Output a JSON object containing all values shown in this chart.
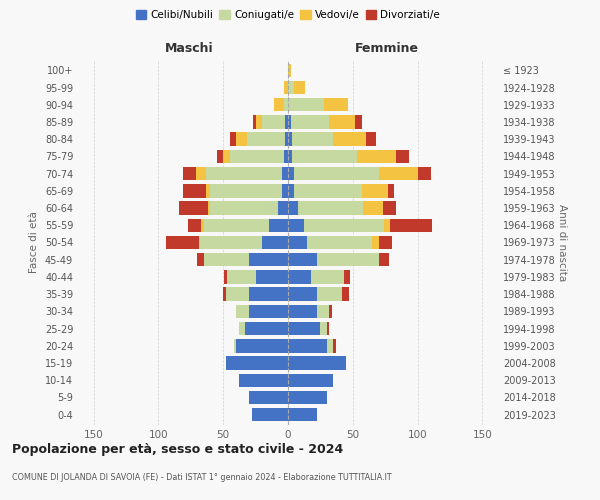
{
  "age_groups": [
    "0-4",
    "5-9",
    "10-14",
    "15-19",
    "20-24",
    "25-29",
    "30-34",
    "35-39",
    "40-44",
    "45-49",
    "50-54",
    "55-59",
    "60-64",
    "65-69",
    "70-74",
    "75-79",
    "80-84",
    "85-89",
    "90-94",
    "95-99",
    "100+"
  ],
  "birth_years": [
    "2019-2023",
    "2014-2018",
    "2009-2013",
    "2004-2008",
    "1999-2003",
    "1994-1998",
    "1989-1993",
    "1984-1988",
    "1979-1983",
    "1974-1978",
    "1969-1973",
    "1964-1968",
    "1959-1963",
    "1954-1958",
    "1949-1953",
    "1944-1948",
    "1939-1943",
    "1934-1938",
    "1929-1933",
    "1924-1928",
    "≤ 1923"
  ],
  "colors": {
    "celibi": "#4472c4",
    "coniugati": "#c5d9a0",
    "vedovi": "#f5c342",
    "divorziati": "#c0392b"
  },
  "maschi": {
    "celibi": [
      28,
      30,
      38,
      48,
      40,
      33,
      30,
      30,
      25,
      30,
      20,
      15,
      8,
      5,
      5,
      3,
      2,
      2,
      0,
      0,
      0
    ],
    "coniugati": [
      0,
      0,
      0,
      0,
      2,
      5,
      10,
      18,
      22,
      35,
      48,
      50,
      52,
      55,
      58,
      42,
      30,
      18,
      3,
      0,
      0
    ],
    "vedovi": [
      0,
      0,
      0,
      0,
      0,
      0,
      0,
      0,
      0,
      0,
      1,
      2,
      2,
      3,
      8,
      5,
      8,
      5,
      8,
      3,
      0
    ],
    "divorziati": [
      0,
      0,
      0,
      0,
      0,
      0,
      0,
      2,
      2,
      5,
      25,
      10,
      22,
      18,
      10,
      5,
      5,
      2,
      0,
      0,
      0
    ]
  },
  "femmine": {
    "celibi": [
      22,
      30,
      35,
      45,
      30,
      25,
      22,
      22,
      18,
      22,
      15,
      12,
      8,
      5,
      5,
      3,
      3,
      2,
      0,
      0,
      0
    ],
    "coniugati": [
      0,
      0,
      0,
      0,
      5,
      5,
      10,
      20,
      25,
      48,
      50,
      62,
      50,
      52,
      65,
      50,
      32,
      30,
      28,
      5,
      0
    ],
    "vedovi": [
      0,
      0,
      0,
      0,
      0,
      0,
      0,
      0,
      0,
      0,
      5,
      5,
      15,
      20,
      30,
      30,
      25,
      20,
      18,
      8,
      2
    ],
    "divorziati": [
      0,
      0,
      0,
      0,
      2,
      2,
      2,
      5,
      5,
      8,
      10,
      32,
      10,
      5,
      10,
      10,
      8,
      5,
      0,
      0,
      0
    ]
  },
  "title": "Popolazione per età, sesso e stato civile - 2024",
  "subtitle": "COMUNE DI JOLANDA DI SAVOIA (FE) - Dati ISTAT 1° gennaio 2024 - Elaborazione TUTTITALIA.IT",
  "xlabel_left": "Maschi",
  "xlabel_right": "Femmine",
  "ylabel_left": "Fasce di età",
  "ylabel_right": "Anni di nascita",
  "xlim": 162,
  "background_color": "#f8f8f8",
  "grid_color": "#cccccc"
}
